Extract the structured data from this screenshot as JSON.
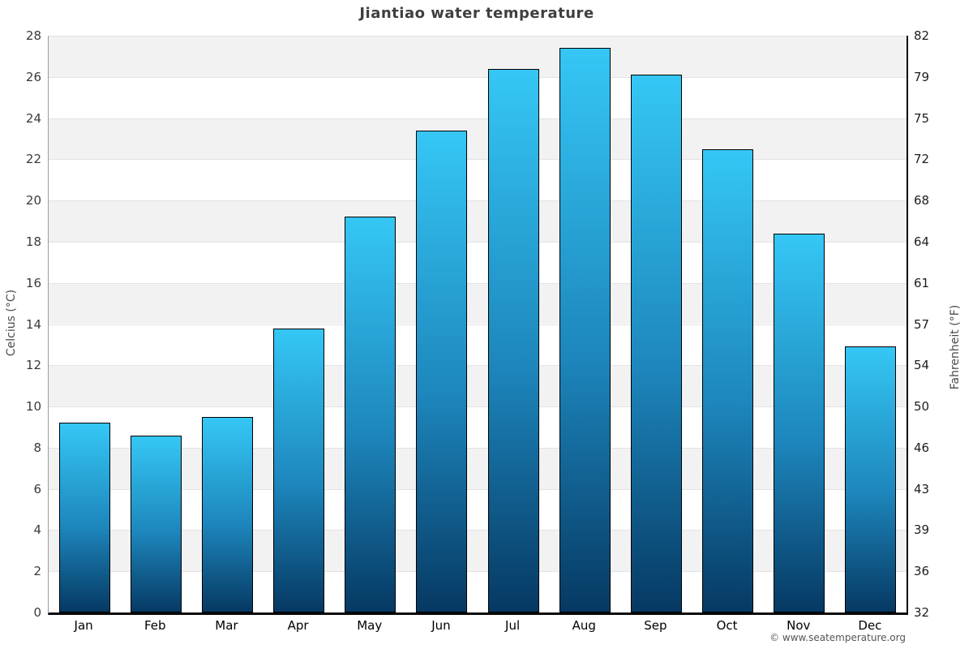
{
  "title": "Jiantiao water temperature",
  "footer": "© www.seatemperature.org",
  "axes": {
    "left_label": "Celcius (°C)",
    "right_label": "Fahrenheit (°F)"
  },
  "chart_data": {
    "type": "bar",
    "title": "Jiantiao water temperature",
    "categories": [
      "Jan",
      "Feb",
      "Mar",
      "Apr",
      "May",
      "Jun",
      "Jul",
      "Aug",
      "Sep",
      "Oct",
      "Nov",
      "Dec"
    ],
    "values": [
      9.2,
      8.6,
      9.5,
      13.8,
      19.2,
      23.4,
      26.4,
      27.4,
      26.1,
      22.5,
      18.4,
      12.9
    ],
    "units": "°C",
    "xlabel": "",
    "ylabel": "Celcius (°C)",
    "ylabel_right": "Fahrenheit (°F)",
    "ylim": [
      0,
      28
    ],
    "yticks_celsius": [
      28,
      26,
      24,
      22,
      20,
      18,
      16,
      14,
      12,
      10,
      8,
      6,
      4,
      2,
      0
    ],
    "yticks_fahrenheit": [
      82,
      79,
      75,
      72,
      68,
      64,
      61,
      57,
      54,
      50,
      46,
      43,
      39,
      36,
      32
    ],
    "legend": "none",
    "grid": "alternating-horizontal-bands",
    "colors": {
      "bar_top": "#35c7f5",
      "bar_mid": "#1d86bc",
      "bar_bottom": "#063963",
      "bar_border": "#000000",
      "band_gray": "#f2f2f2",
      "band_white": "#ffffff",
      "title_text": "#3f3f3f",
      "axis_text": "#3a3a3a"
    }
  }
}
